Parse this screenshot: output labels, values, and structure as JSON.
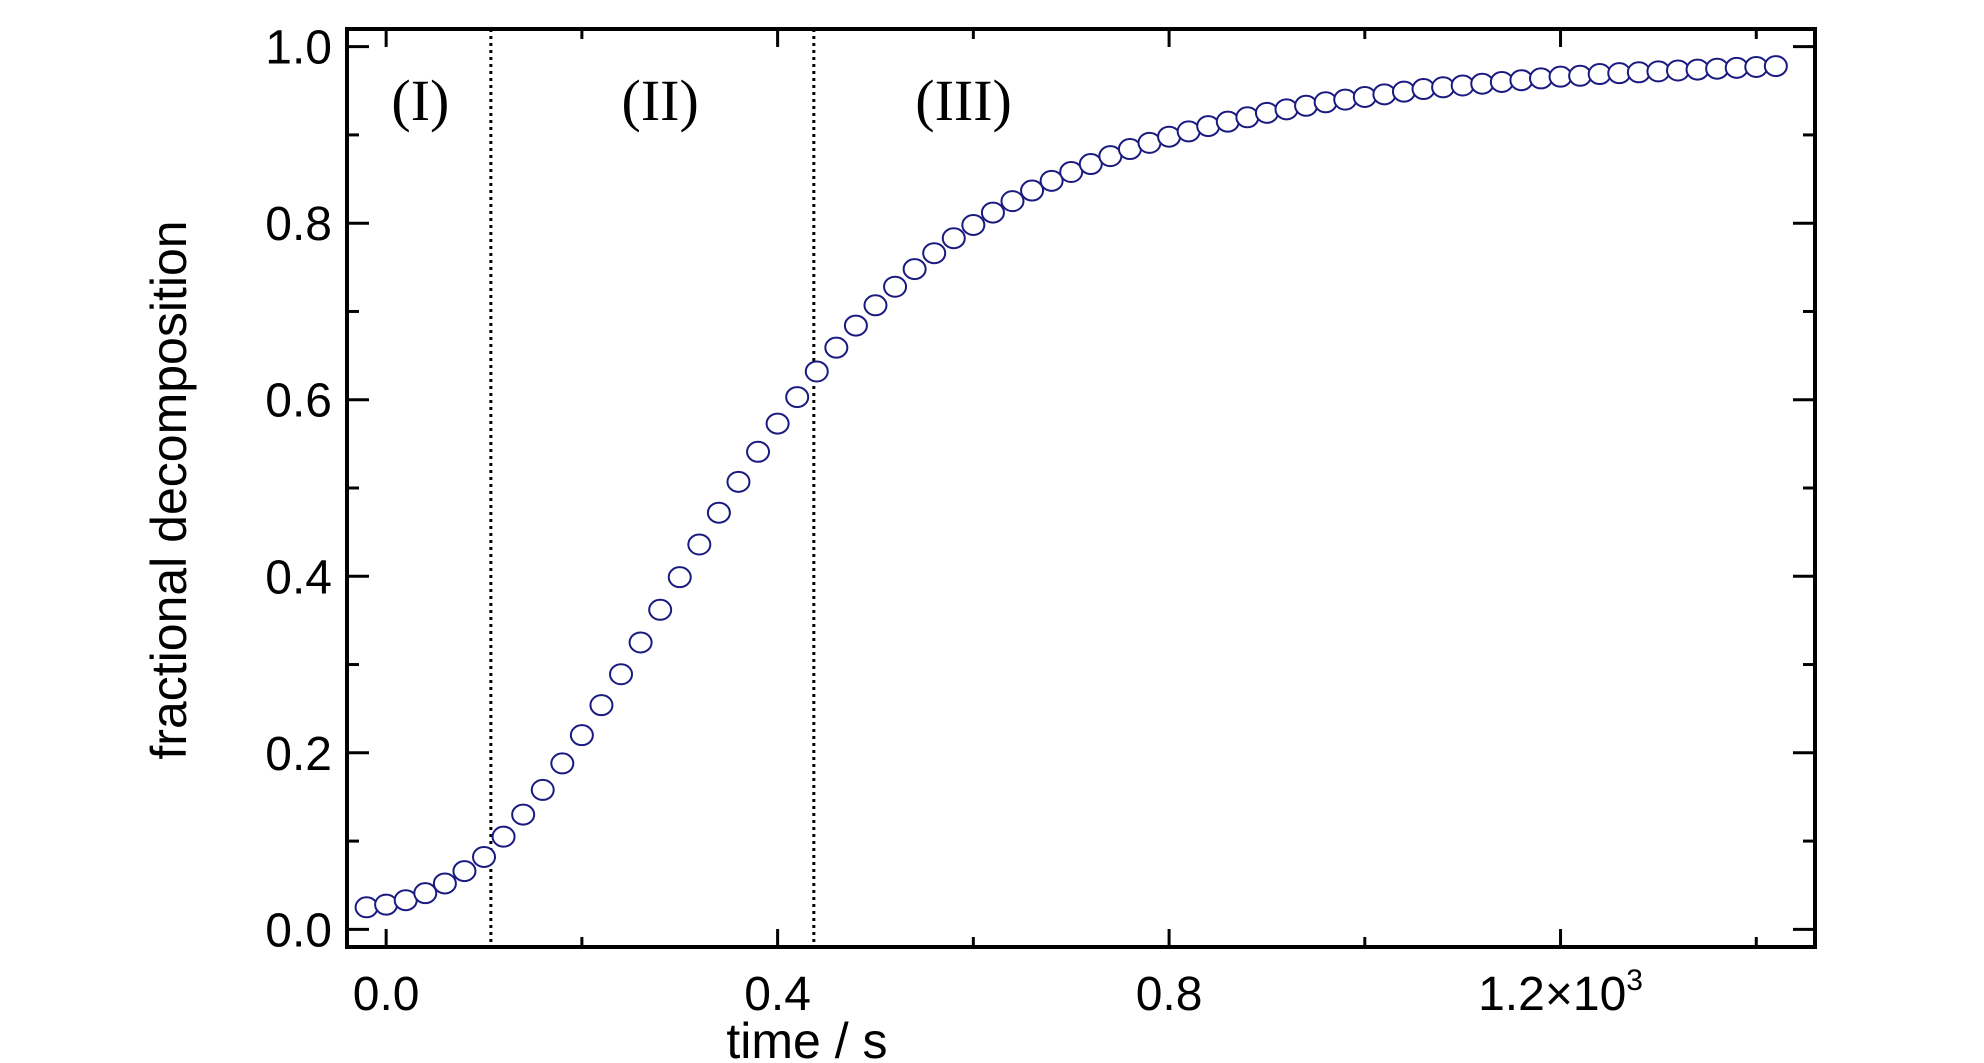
{
  "chart_data": {
    "type": "scatter",
    "title": "",
    "xlabel": "time / s",
    "ylabel": "fractional decomposition",
    "xlim": [
      -0.04,
      1.46
    ],
    "ylim": [
      -0.02,
      1.02
    ],
    "x_ticks": [
      {
        "value": 0.0,
        "label": "0.0"
      },
      {
        "value": 0.4,
        "label": "0.4"
      },
      {
        "value": 0.8,
        "label": "0.8"
      },
      {
        "value": 1.2,
        "label": "1.2×10",
        "sup": "3"
      }
    ],
    "x_minor_ticks": [
      0.2,
      0.6,
      1.0,
      1.4
    ],
    "y_ticks": [
      {
        "value": 0.0,
        "label": "0.0"
      },
      {
        "value": 0.2,
        "label": "0.2"
      },
      {
        "value": 0.4,
        "label": "0.4"
      },
      {
        "value": 0.6,
        "label": "0.6"
      },
      {
        "value": 0.8,
        "label": "0.8"
      },
      {
        "value": 1.0,
        "label": "1.0"
      }
    ],
    "y_minor_ticks": [
      0.1,
      0.3,
      0.5,
      0.7,
      0.9
    ],
    "grid": false,
    "marker": "open-circle",
    "marker_color": "#1a1a80",
    "vlines": [
      0.107,
      0.437
    ],
    "regions": [
      {
        "label": "(I)",
        "x": 0.035
      },
      {
        "label": "(II)",
        "x": 0.28
      },
      {
        "label": "(III)",
        "x": 0.59
      }
    ],
    "x": [
      -0.02,
      0.0,
      0.02,
      0.04,
      0.06,
      0.08,
      0.1,
      0.12,
      0.14,
      0.16,
      0.18,
      0.2,
      0.22,
      0.24,
      0.26,
      0.28,
      0.3,
      0.32,
      0.34,
      0.36,
      0.38,
      0.4,
      0.42,
      0.44,
      0.46,
      0.48,
      0.5,
      0.52,
      0.54,
      0.56,
      0.58,
      0.6,
      0.62,
      0.64,
      0.66,
      0.68,
      0.7,
      0.72,
      0.74,
      0.76,
      0.78,
      0.8,
      0.82,
      0.84,
      0.86,
      0.88,
      0.9,
      0.92,
      0.94,
      0.96,
      0.98,
      1.0,
      1.02,
      1.04,
      1.06,
      1.08,
      1.1,
      1.12,
      1.14,
      1.16,
      1.18,
      1.2,
      1.22,
      1.24,
      1.26,
      1.28,
      1.3,
      1.32,
      1.34,
      1.36,
      1.38,
      1.4,
      1.42
    ],
    "y": [
      0.025,
      0.028,
      0.033,
      0.041,
      0.052,
      0.066,
      0.082,
      0.105,
      0.13,
      0.158,
      0.188,
      0.22,
      0.254,
      0.289,
      0.325,
      0.362,
      0.399,
      0.436,
      0.472,
      0.507,
      0.541,
      0.573,
      0.603,
      0.632,
      0.659,
      0.684,
      0.707,
      0.728,
      0.748,
      0.766,
      0.783,
      0.798,
      0.812,
      0.825,
      0.837,
      0.848,
      0.858,
      0.867,
      0.876,
      0.884,
      0.891,
      0.898,
      0.904,
      0.91,
      0.915,
      0.92,
      0.925,
      0.929,
      0.933,
      0.937,
      0.94,
      0.943,
      0.946,
      0.949,
      0.952,
      0.954,
      0.956,
      0.958,
      0.96,
      0.962,
      0.964,
      0.966,
      0.967,
      0.969,
      0.97,
      0.971,
      0.972,
      0.973,
      0.974,
      0.975,
      0.976,
      0.977,
      0.978
    ]
  }
}
